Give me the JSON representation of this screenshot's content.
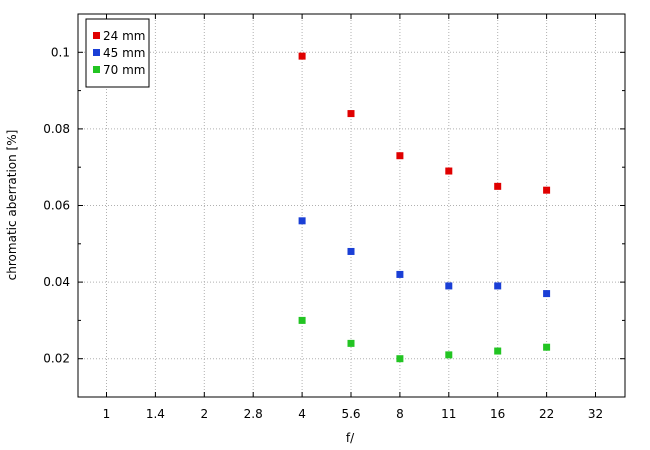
{
  "chart_data": {
    "type": "scatter",
    "title": "",
    "xlabel": "f/",
    "ylabel": "chromatic  aberration [%]",
    "x_scale": "log2",
    "x_ticks": [
      "1",
      "1.4",
      "2",
      "2.8",
      "4",
      "5.6",
      "8",
      "11",
      "16",
      "22",
      "32"
    ],
    "y_ticks": [
      "0.02",
      "0.04",
      "0.06",
      "0.08",
      "0.1"
    ],
    "ylim": [
      0.01,
      0.11
    ],
    "grid": true,
    "legend_position": "top-left",
    "series": [
      {
        "name": "24 mm",
        "color": "#e00000",
        "points": [
          [
            "4",
            0.099
          ],
          [
            "5.6",
            0.084
          ],
          [
            "8",
            0.073
          ],
          [
            "11",
            0.069
          ],
          [
            "16",
            0.065
          ],
          [
            "22",
            0.064
          ]
        ]
      },
      {
        "name": "45 mm",
        "color": "#1a3fd6",
        "points": [
          [
            "4",
            0.056
          ],
          [
            "5.6",
            0.048
          ],
          [
            "8",
            0.042
          ],
          [
            "11",
            0.039
          ],
          [
            "16",
            0.039
          ],
          [
            "22",
            0.037
          ]
        ]
      },
      {
        "name": "70 mm",
        "color": "#22c422",
        "points": [
          [
            "4",
            0.03
          ],
          [
            "5.6",
            0.024
          ],
          [
            "8",
            0.02
          ],
          [
            "11",
            0.021
          ],
          [
            "16",
            0.022
          ],
          [
            "22",
            0.023
          ]
        ]
      }
    ]
  }
}
